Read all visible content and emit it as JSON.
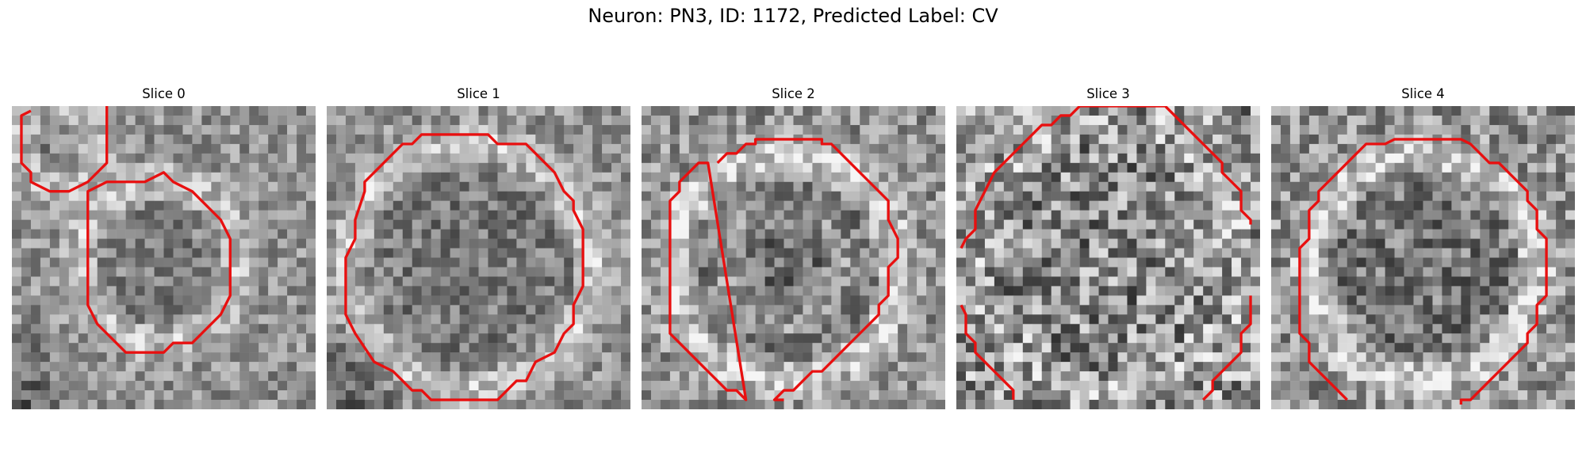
{
  "figure": {
    "title": "Neuron: PN3, ID: 1172, Predicted Label: CV"
  },
  "panels": [
    {
      "title": "Slice 0"
    },
    {
      "title": "Slice 1"
    },
    {
      "title": "Slice 2"
    },
    {
      "title": "Slice 3"
    },
    {
      "title": "Slice 4"
    }
  ],
  "colors": {
    "contour": "#e81010",
    "background": "#ffffff"
  }
}
